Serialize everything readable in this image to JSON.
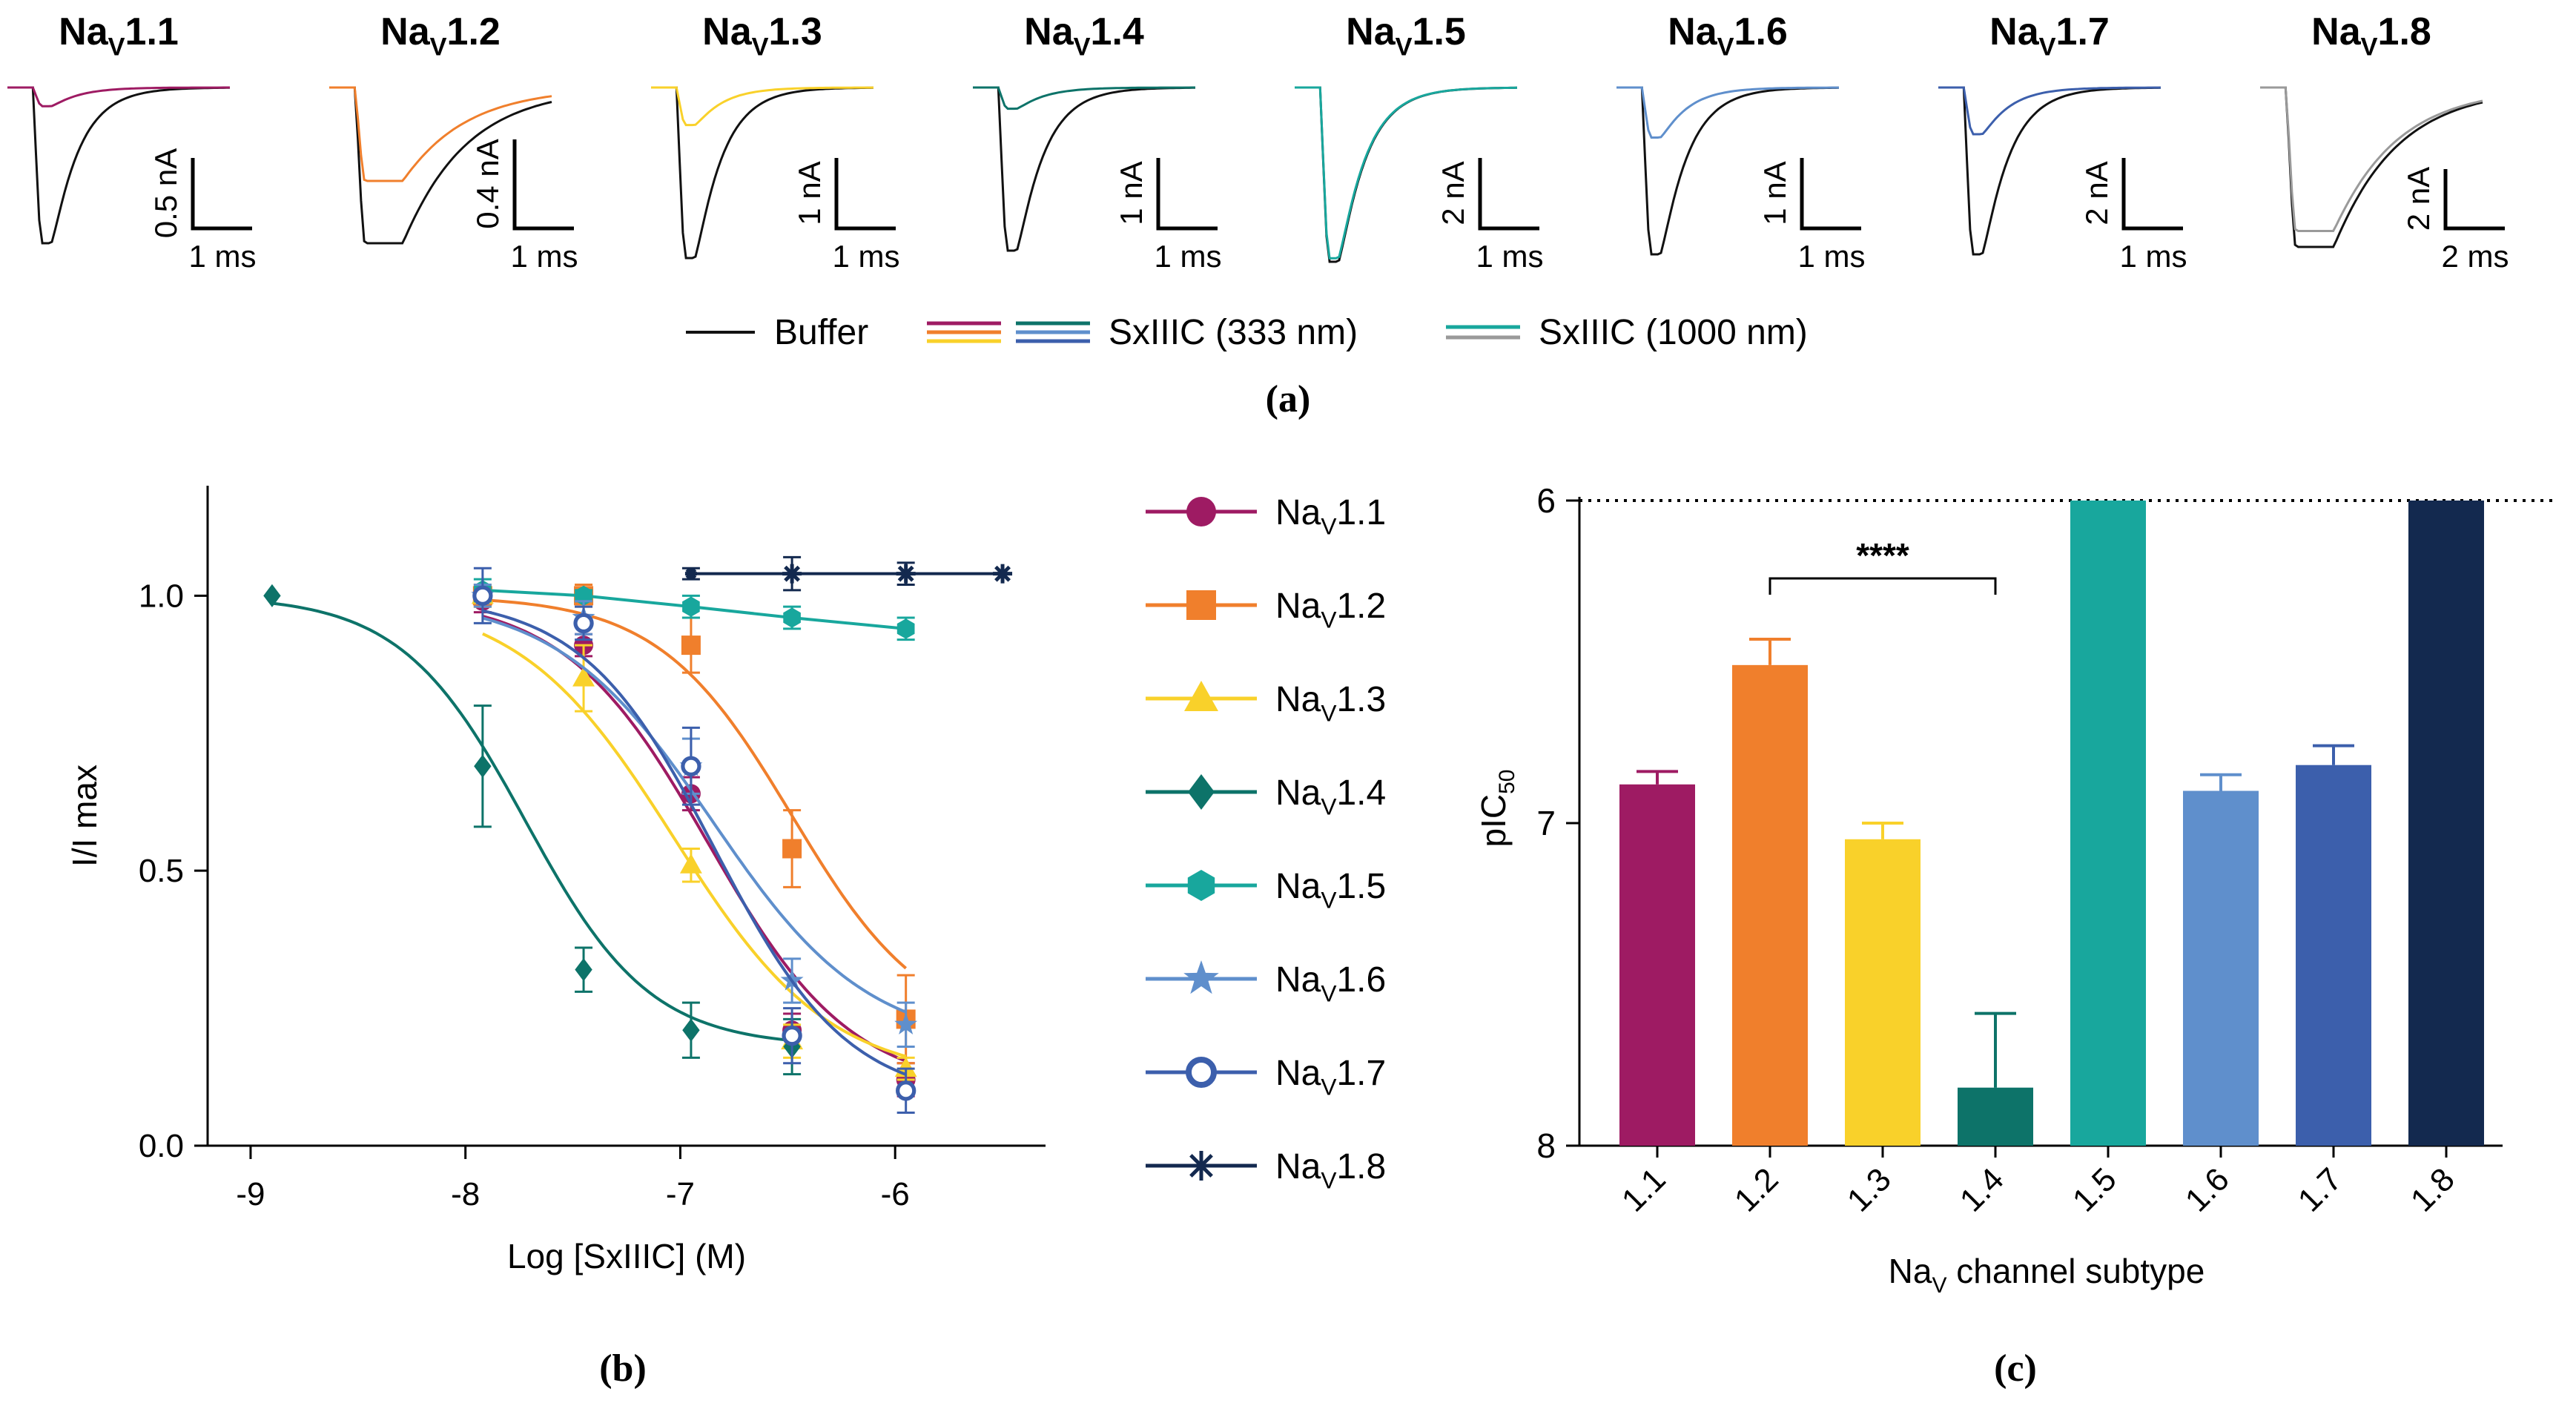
{
  "palette": {
    "nav1_1": "#9e1b63",
    "nav1_2": "#f07f2c",
    "nav1_3": "#f9d12a",
    "nav1_4": "#0d7369",
    "nav1_5": "#18a79d",
    "nav1_6": "#5f8fcc",
    "nav1_7": "#3c5fac",
    "nav1_8": "#13294f",
    "buffer": "#111111",
    "nav1_8_toxin": "#9a9a9a"
  },
  "panel_labels": {
    "a": "(a)",
    "b": "(b)",
    "c": "(c)"
  },
  "panel_a": {
    "legend": {
      "buffer": "Buffer",
      "toxin_333": "SxIIIC (333 nm)",
      "toxin_1000": "SxIIIC (1000 nm)"
    },
    "traces": [
      {
        "title": "Na",
        "sub": "V",
        "suffix": "1.1",
        "scale_y": "0.5 nA",
        "scale_x": "1 ms",
        "peak_ratio": 0.12,
        "color_key": "nav1_1"
      },
      {
        "title": "Na",
        "sub": "V",
        "suffix": "1.2",
        "scale_y": "0.4 nA",
        "scale_x": "1 ms",
        "peak_ratio": 0.6,
        "color_key": "nav1_2"
      },
      {
        "title": "Na",
        "sub": "V",
        "suffix": "1.3",
        "scale_y": "1 nA",
        "scale_x": "1 ms",
        "peak_ratio": 0.22,
        "color_key": "nav1_3"
      },
      {
        "title": "Na",
        "sub": "V",
        "suffix": "1.4",
        "scale_y": "1 nA",
        "scale_x": "1 ms",
        "peak_ratio": 0.13,
        "color_key": "nav1_4"
      },
      {
        "title": "Na",
        "sub": "V",
        "suffix": "1.5",
        "scale_y": "2 nA",
        "scale_x": "1 ms",
        "peak_ratio": 0.98,
        "color_key": "nav1_5"
      },
      {
        "title": "Na",
        "sub": "V",
        "suffix": "1.6",
        "scale_y": "1 nA",
        "scale_x": "1 ms",
        "peak_ratio": 0.3,
        "color_key": "nav1_6"
      },
      {
        "title": "Na",
        "sub": "V",
        "suffix": "1.7",
        "scale_y": "2 nA",
        "scale_x": "1 ms",
        "peak_ratio": 0.28,
        "color_key": "nav1_7"
      },
      {
        "title": "Na",
        "sub": "V",
        "suffix": "1.8",
        "scale_y": "2 nA",
        "scale_x": "2 ms",
        "peak_ratio": 0.9,
        "color_key": "nav1_8_toxin"
      }
    ]
  },
  "chart_data": [
    {
      "type": "line",
      "title": "",
      "xlabel": "Log [SxIIIC] (M)",
      "ylabel": "I/I max",
      "xlim": [
        -9.2,
        -5.3
      ],
      "ylim": [
        0,
        1.2
      ],
      "xticks": [
        "-9",
        "-8",
        "-7",
        "-6"
      ],
      "yticks": [
        "0.0",
        "0.5",
        "1.0"
      ],
      "legend_position": "right",
      "series": [
        {
          "name": "Na",
          "sub": "V",
          "suffix": "1.1",
          "marker": "circle",
          "color_key": "nav1_1",
          "x": [
            -7.92,
            -7.45,
            -6.95,
            -6.48,
            -5.95
          ],
          "y": [
            0.99,
            0.91,
            0.64,
            0.21,
            0.12
          ],
          "err": [
            0.02,
            0.02,
            0.03,
            0.03,
            0.03
          ],
          "fit": {
            "top": 1.0,
            "bottom": 0.1,
            "logIC50": -6.87,
            "hill": 1.3
          }
        },
        {
          "name": "Na",
          "sub": "V",
          "suffix": "1.2",
          "marker": "square",
          "color_key": "nav1_2",
          "x": [
            -7.92,
            -7.45,
            -6.95,
            -6.48,
            -5.95
          ],
          "y": [
            1.0,
            1.0,
            0.91,
            0.54,
            0.23
          ],
          "err": [
            0.02,
            0.02,
            0.05,
            0.07,
            0.08
          ],
          "fit": {
            "top": 1.0,
            "bottom": 0.2,
            "logIC50": -6.48,
            "hill": 1.4
          }
        },
        {
          "name": "Na",
          "sub": "V",
          "suffix": "1.3",
          "marker": "triangle",
          "color_key": "nav1_3",
          "x": [
            -7.92,
            -7.45,
            -6.95,
            -6.48,
            -5.95
          ],
          "y": [
            1.0,
            0.85,
            0.51,
            0.19,
            0.14
          ],
          "err": [
            0.02,
            0.06,
            0.03,
            0.03,
            0.02
          ],
          "fit": {
            "top": 1.0,
            "bottom": 0.12,
            "logIC50": -7.03,
            "hill": 1.2
          }
        },
        {
          "name": "Na",
          "sub": "V",
          "suffix": "1.4",
          "marker": "diamond",
          "color_key": "nav1_4",
          "x": [
            -8.9,
            -7.92,
            -7.45,
            -6.95,
            -6.48
          ],
          "y": [
            1.0,
            0.69,
            0.32,
            0.21,
            0.18
          ],
          "err": [
            0.0,
            0.11,
            0.04,
            0.05,
            0.05
          ],
          "fit": {
            "top": 1.0,
            "bottom": 0.18,
            "logIC50": -7.72,
            "hill": 1.5
          }
        },
        {
          "name": "Na",
          "sub": "V",
          "suffix": "1.5",
          "marker": "hexagon",
          "color_key": "nav1_5",
          "x": [
            -7.92,
            -7.45,
            -6.95,
            -6.48,
            -5.95
          ],
          "y": [
            1.01,
            1.0,
            0.98,
            0.96,
            0.94
          ],
          "err": [
            0.02,
            0.01,
            0.02,
            0.02,
            0.02
          ],
          "fit": {
            "linear": true
          }
        },
        {
          "name": "Na",
          "sub": "V",
          "suffix": "1.6",
          "marker": "star",
          "color_key": "nav1_6",
          "x": [
            -7.92,
            -7.45,
            -6.95,
            -6.48,
            -5.95
          ],
          "y": [
            1.0,
            0.96,
            0.69,
            0.3,
            0.22
          ],
          "err": [
            0.02,
            0.03,
            0.05,
            0.04,
            0.04
          ],
          "fit": {
            "top": 1.0,
            "bottom": 0.18,
            "logIC50": -6.85,
            "hill": 1.2
          }
        },
        {
          "name": "Na",
          "sub": "V",
          "suffix": "1.7",
          "marker": "open-circle",
          "color_key": "nav1_7",
          "x": [
            -7.92,
            -7.45,
            -6.95,
            -6.48,
            -5.95
          ],
          "y": [
            1.0,
            0.95,
            0.69,
            0.2,
            0.1
          ],
          "err": [
            0.05,
            0.03,
            0.07,
            0.05,
            0.04
          ],
          "fit": {
            "top": 1.0,
            "bottom": 0.08,
            "logIC50": -6.84,
            "hill": 1.4
          }
        },
        {
          "name": "Na",
          "sub": "V",
          "suffix": "1.8",
          "marker": "asterisk",
          "color_key": "nav1_8",
          "x": [
            -6.95,
            -6.48,
            -5.95,
            -5.5
          ],
          "y": [
            1.04,
            1.04,
            1.04,
            1.04
          ],
          "err": [
            0.01,
            0.03,
            0.02,
            0.0
          ],
          "fit": {
            "linear": true
          }
        }
      ]
    },
    {
      "type": "bar",
      "title": "",
      "xlabel_pre": "Na",
      "xlabel_sub": "V",
      "xlabel_post": " channel subtype",
      "ylabel_main": "pIC",
      "ylabel_sub": "50",
      "ylim": [
        6,
        8
      ],
      "y_inverted": true,
      "yticks": [
        "6",
        "7",
        "8"
      ],
      "reference_line": 6,
      "significance": "****",
      "significance_between": [
        "1.2",
        "1.4"
      ],
      "categories": [
        "1.1",
        "1.2",
        "1.3",
        "1.4",
        "1.5",
        "1.6",
        "1.7",
        "1.8"
      ],
      "values": [
        6.88,
        6.51,
        7.05,
        7.82,
        6.0,
        6.9,
        6.82,
        6.0
      ],
      "errors": [
        0.04,
        0.08,
        0.05,
        0.23,
        0.0,
        0.05,
        0.06,
        0.0
      ],
      "color_keys": [
        "nav1_1",
        "nav1_2",
        "nav1_3",
        "nav1_4",
        "nav1_5",
        "nav1_6",
        "nav1_7",
        "nav1_8"
      ]
    }
  ]
}
